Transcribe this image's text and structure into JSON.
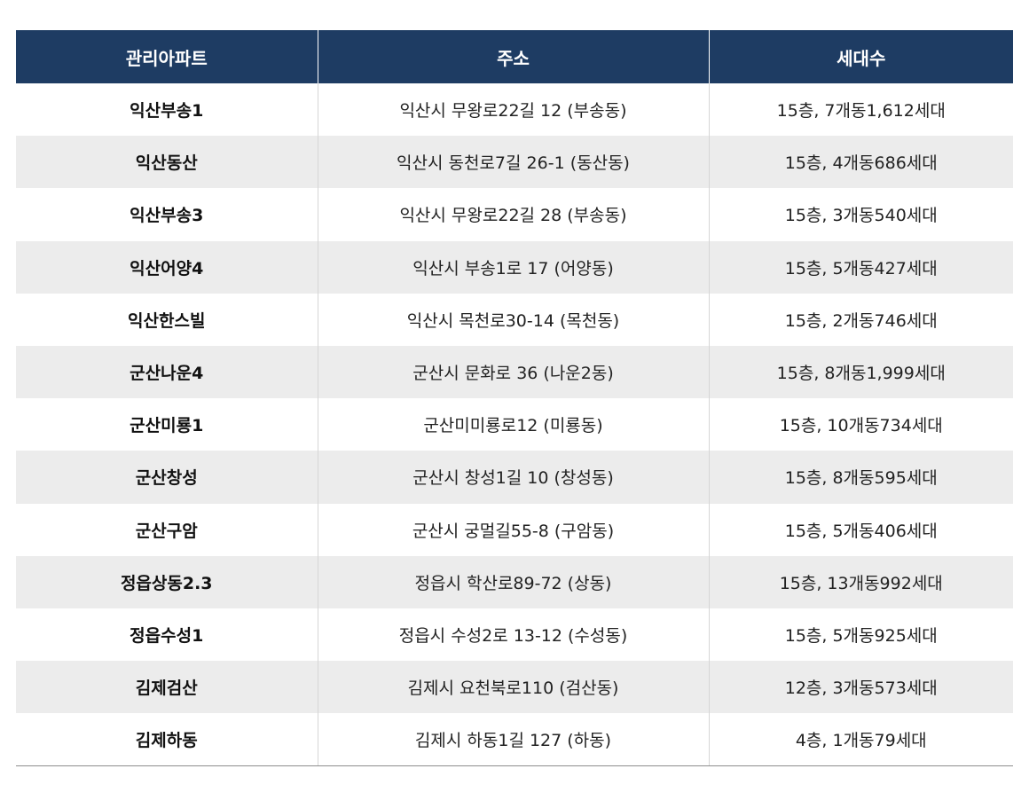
{
  "table": {
    "headers": [
      "관리아파트",
      "주소",
      "세대수"
    ],
    "rows": [
      {
        "name": "익산부송1",
        "address": "익산시  무왕로22길  12  (부송동)",
        "households": "15층,  7개동1,612세대"
      },
      {
        "name": "익산동산",
        "address": "익산시  동천로7길  26-1  (동산동)",
        "households": "15층,  4개동686세대"
      },
      {
        "name": "익산부송3",
        "address": "익산시  무왕로22길  28  (부송동)",
        "households": "15층,  3개동540세대"
      },
      {
        "name": "익산어양4",
        "address": "익산시  부송1로  17  (어양동)",
        "households": "15층,  5개동427세대"
      },
      {
        "name": "익산한스빌",
        "address": "익산시  목천로30-14  (목천동)",
        "households": "15층,  2개동746세대"
      },
      {
        "name": "군산나운4",
        "address": "군산시  문화로  36  (나운2동)",
        "households": "15층,  8개동1,999세대"
      },
      {
        "name": "군산미룡1",
        "address": "군산미미룡로12  (미룡동)",
        "households": "15층,  10개동734세대"
      },
      {
        "name": "군산창성",
        "address": "군산시  창성1길  10  (창성동)",
        "households": "15층,  8개동595세대"
      },
      {
        "name": "군산구암",
        "address": "군산시  궁멀길55-8  (구암동)",
        "households": "15층,  5개동406세대"
      },
      {
        "name": "정읍상동2.3",
        "address": "정읍시  학산로89-72  (상동)",
        "households": "15층,  13개동992세대"
      },
      {
        "name": "정읍수성1",
        "address": "정읍시  수성2로  13-12  (수성동)",
        "households": "15층,  5개동925세대"
      },
      {
        "name": "김제검산",
        "address": "김제시  요천북로110  (검산동)",
        "households": "12층,  3개동573세대"
      },
      {
        "name": "김제하동",
        "address": "김제시  하동1길  127  (하동)",
        "households": "4층,  1개동79세대"
      }
    ]
  }
}
